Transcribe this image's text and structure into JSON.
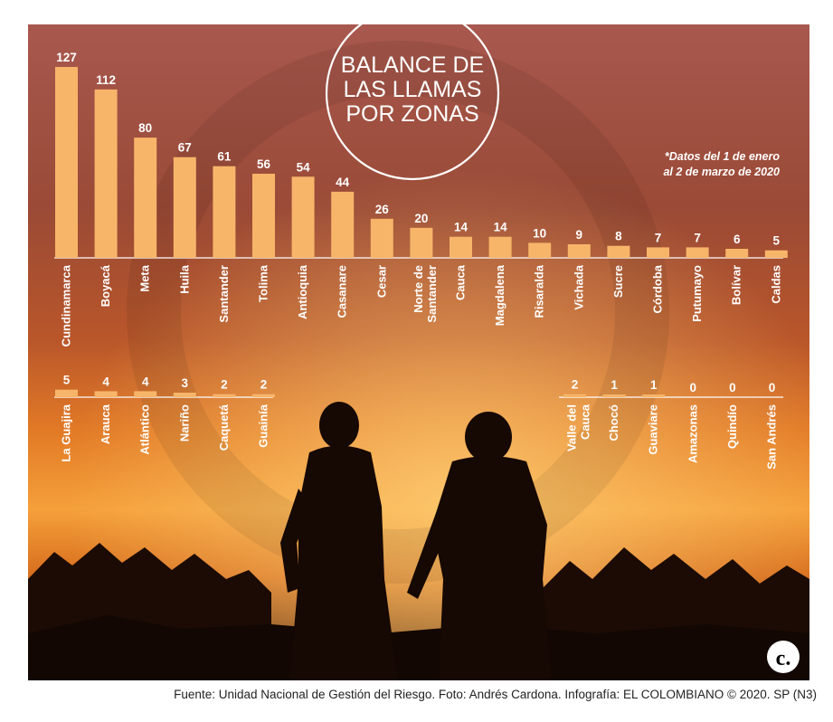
{
  "title": {
    "line1": "BALANCE DE",
    "line2": "LAS LLAMAS",
    "line3": "POR ZONAS"
  },
  "note": {
    "line1": "*Datos del 1 de enero",
    "line2": "al 2 de marzo de 2020"
  },
  "footer": "Fuente: Unidad Nacional de Gestión del Riesgo. Foto: Andrés Cardona. Infografía: EL COLOMBIANO © 2020. SP (N3)",
  "logo": {
    "letter": "c.",
    "icon": "el-colombiano-logo"
  },
  "colors": {
    "bar": "#f7b56a",
    "label": "#ffffff",
    "title_text": "#ffffff"
  },
  "chart_data": [
    {
      "type": "bar",
      "title": "BALANCE DE LAS LLAMAS POR ZONAS",
      "categories": [
        [
          "Cundinamarca"
        ],
        [
          "Boyacá"
        ],
        [
          "Meta"
        ],
        [
          "Huila"
        ],
        [
          "Santander"
        ],
        [
          "Tolima"
        ],
        [
          "Antioquia"
        ],
        [
          "Casanare"
        ],
        [
          "Cesar"
        ],
        [
          "Norte de",
          "Santander"
        ],
        [
          "Cauca"
        ],
        [
          "Magdalena"
        ],
        [
          "Risaralda"
        ],
        [
          "Vichada"
        ],
        [
          "Sucre"
        ],
        [
          "Córdoba"
        ],
        [
          "Putumayo"
        ],
        [
          "Bolívar"
        ],
        [
          "Caldas"
        ]
      ],
      "values": [
        127,
        112,
        80,
        67,
        61,
        56,
        54,
        44,
        26,
        20,
        14,
        14,
        10,
        9,
        8,
        7,
        7,
        6,
        5
      ],
      "ylim": [
        0,
        127
      ]
    },
    {
      "type": "bar",
      "categories": [
        [
          "La Guajira"
        ],
        [
          "Arauca"
        ],
        [
          "Atlántico"
        ],
        [
          "Nariño"
        ],
        [
          "Caquetá"
        ],
        [
          "Guainía"
        ]
      ],
      "values": [
        5,
        4,
        4,
        3,
        2,
        2
      ],
      "ylim": [
        0,
        127
      ]
    },
    {
      "type": "bar",
      "categories": [
        [
          "Valle del",
          "Cauca"
        ],
        [
          "Chocó"
        ],
        [
          "Guaviare"
        ],
        [
          "Amazonas"
        ],
        [
          "Quindío"
        ],
        [
          "San Andrés"
        ]
      ],
      "values": [
        2,
        1,
        1,
        0,
        0,
        0
      ],
      "ylim": [
        0,
        127
      ]
    }
  ]
}
